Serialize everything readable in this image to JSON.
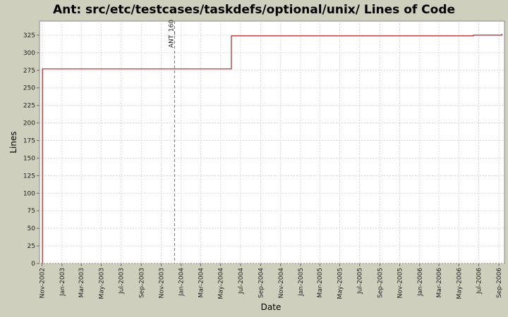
{
  "chart_data": {
    "type": "line",
    "title": "Ant: src/etc/testcases/taskdefs/optional/unix/ Lines of Code",
    "xlabel": "Date",
    "ylabel": "Lines",
    "x_axis_type": "date",
    "xlim": [
      "2002-10-24",
      "2006-09-18"
    ],
    "ylim": [
      0,
      345
    ],
    "yticks": [
      0,
      25,
      50,
      75,
      100,
      125,
      150,
      175,
      200,
      225,
      250,
      275,
      300,
      325
    ],
    "xticks": [
      {
        "date": "2002-11-01",
        "label": "Nov-2002"
      },
      {
        "date": "2003-01-01",
        "label": "Jan-2003"
      },
      {
        "date": "2003-03-01",
        "label": "Mar-2003"
      },
      {
        "date": "2003-05-01",
        "label": "May-2003"
      },
      {
        "date": "2003-07-01",
        "label": "Jul-2003"
      },
      {
        "date": "2003-09-01",
        "label": "Sep-2003"
      },
      {
        "date": "2003-11-01",
        "label": "Nov-2003"
      },
      {
        "date": "2004-01-01",
        "label": "Jan-2004"
      },
      {
        "date": "2004-03-01",
        "label": "Mar-2004"
      },
      {
        "date": "2004-05-01",
        "label": "May-2004"
      },
      {
        "date": "2004-07-01",
        "label": "Jul-2004"
      },
      {
        "date": "2004-09-01",
        "label": "Sep-2004"
      },
      {
        "date": "2004-11-01",
        "label": "Nov-2004"
      },
      {
        "date": "2005-01-01",
        "label": "Jan-2005"
      },
      {
        "date": "2005-03-01",
        "label": "Mar-2005"
      },
      {
        "date": "2005-05-01",
        "label": "May-2005"
      },
      {
        "date": "2005-07-01",
        "label": "Jul-2005"
      },
      {
        "date": "2005-09-01",
        "label": "Sep-2005"
      },
      {
        "date": "2005-11-01",
        "label": "Nov-2005"
      },
      {
        "date": "2006-01-01",
        "label": "Jan-2006"
      },
      {
        "date": "2006-03-01",
        "label": "Mar-2006"
      },
      {
        "date": "2006-05-01",
        "label": "May-2006"
      },
      {
        "date": "2006-07-01",
        "label": "Jul-2006"
      },
      {
        "date": "2006-09-01",
        "label": "Sep-2006"
      }
    ],
    "grid": true,
    "series": [
      {
        "color": "#b22222",
        "step": true,
        "points": [
          {
            "x": "2002-11-02",
            "y": 0
          },
          {
            "x": "2002-11-02",
            "y": 277
          },
          {
            "x": "2004-06-03",
            "y": 277
          },
          {
            "x": "2004-06-03",
            "y": 324
          },
          {
            "x": "2006-06-15",
            "y": 324
          },
          {
            "x": "2006-06-15",
            "y": 325
          },
          {
            "x": "2006-09-10",
            "y": 325
          },
          {
            "x": "2006-09-10",
            "y": 327
          }
        ]
      }
    ],
    "markers": [
      {
        "x": "2003-12-12",
        "label": "ANT_160"
      }
    ],
    "colors": {
      "background": "#cfcfbd",
      "plot_background": "#ffffff",
      "grid": "#d8d8d8",
      "marker": "#777777"
    }
  }
}
